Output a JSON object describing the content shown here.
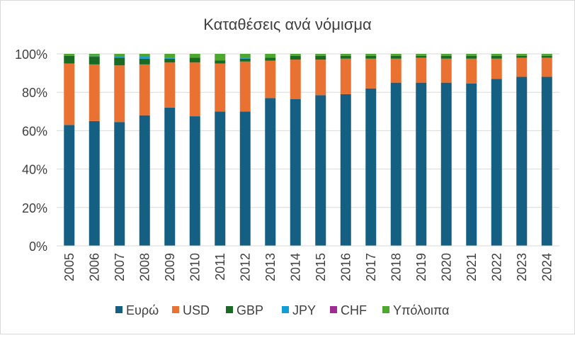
{
  "chart_data": {
    "type": "bar",
    "stacked": true,
    "title": "Καταθέσεις ανά νόμισμα",
    "xlabel": "",
    "ylabel": "",
    "ylim": [
      0,
      1
    ],
    "y_ticks": [
      "0%",
      "20%",
      "40%",
      "60%",
      "80%",
      "100%"
    ],
    "grid": true,
    "legend_position": "bottom",
    "categories": [
      "2005",
      "2006",
      "2007",
      "2008",
      "2009",
      "2010",
      "2011",
      "2012",
      "2013",
      "2014",
      "2015",
      "2016",
      "2017",
      "2018",
      "2019",
      "2020",
      "2021",
      "2022",
      "2023",
      "2024"
    ],
    "series": [
      {
        "name": "Ευρώ",
        "color": "#156082",
        "values": [
          0.63,
          0.65,
          0.645,
          0.68,
          0.72,
          0.675,
          0.7,
          0.7,
          0.77,
          0.765,
          0.785,
          0.79,
          0.82,
          0.85,
          0.85,
          0.85,
          0.845,
          0.87,
          0.88,
          0.88
        ]
      },
      {
        "name": "USD",
        "color": "#E97132",
        "values": [
          0.32,
          0.295,
          0.295,
          0.265,
          0.235,
          0.28,
          0.25,
          0.26,
          0.195,
          0.205,
          0.185,
          0.185,
          0.155,
          0.125,
          0.13,
          0.125,
          0.13,
          0.105,
          0.1,
          0.1
        ]
      },
      {
        "name": "GBP",
        "color": "#196B24",
        "values": [
          0.04,
          0.04,
          0.04,
          0.03,
          0.02,
          0.025,
          0.015,
          0.015,
          0.015,
          0.02,
          0.02,
          0.015,
          0.015,
          0.015,
          0.01,
          0.015,
          0.015,
          0.015,
          0.01,
          0.01
        ]
      },
      {
        "name": "JPY",
        "color": "#0F9ED5",
        "values": [
          0,
          0.005,
          0.005,
          0.01,
          0.005,
          0,
          0,
          0.005,
          0,
          0,
          0,
          0,
          0,
          0,
          0,
          0,
          0,
          0,
          0,
          0
        ]
      },
      {
        "name": "CHF",
        "color": "#A02B93",
        "values": [
          0,
          0,
          0,
          0,
          0,
          0,
          0,
          0,
          0,
          0,
          0,
          0,
          0,
          0,
          0,
          0,
          0,
          0,
          0,
          0
        ]
      },
      {
        "name": "Υπόλοιπα",
        "color": "#4EA72E",
        "values": [
          0.01,
          0.01,
          0.015,
          0.015,
          0.02,
          0.02,
          0.035,
          0.02,
          0.02,
          0.01,
          0.01,
          0.01,
          0.01,
          0.01,
          0.01,
          0.01,
          0.01,
          0.01,
          0.01,
          0.01
        ]
      }
    ]
  }
}
